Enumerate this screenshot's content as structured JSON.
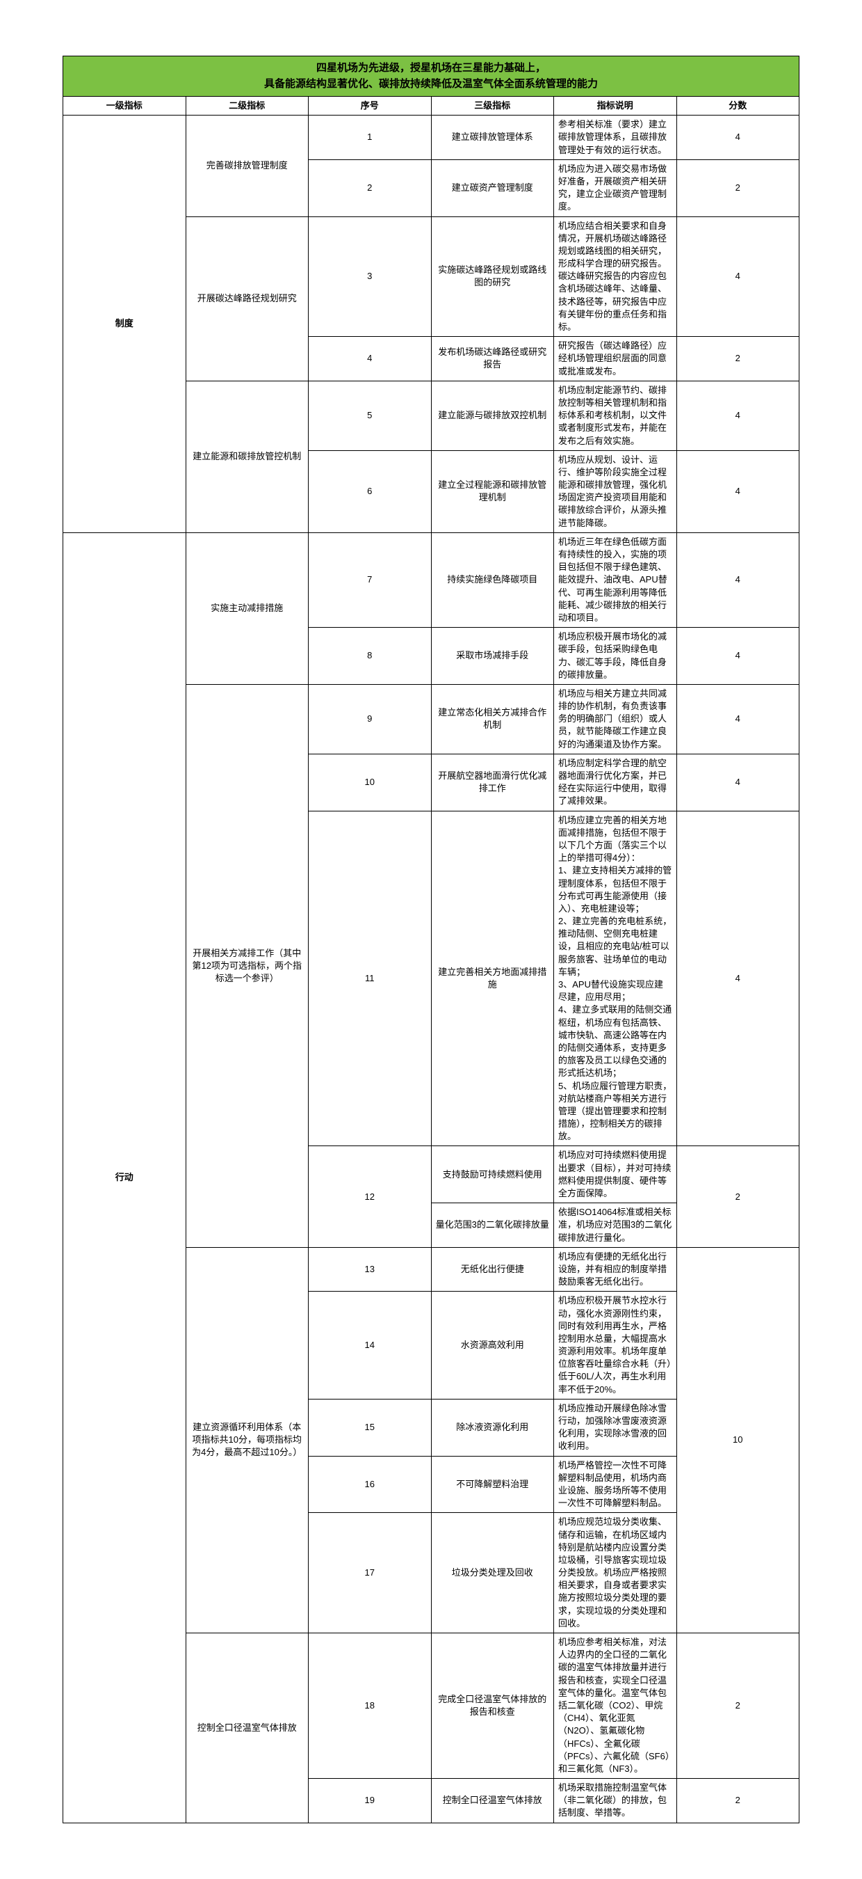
{
  "title_line1": "四星机场为先进级，授星机场在三星能力基础上，",
  "title_line2": "具备能源结构显著优化、碳排放持续降低及温室气体全面系统管理的能力",
  "header": {
    "l1": "一级指标",
    "l2": "二级指标",
    "idx": "序号",
    "l3": "三级指标",
    "desc": "指标说明",
    "score": "分数"
  },
  "groups": [
    {
      "l1": "制度",
      "subgroups": [
        {
          "l2": "完善碳排放管理制度",
          "rows": [
            {
              "idx": "1",
              "l3": "建立碳排放管理体系",
              "desc": "参考相关标准（要求）建立碳排放管理体系，且碳排放管理处于有效的运行状态。",
              "score": "4"
            },
            {
              "idx": "2",
              "l3": "建立碳资产管理制度",
              "desc": "机场应为进入碳交易市场做好准备，开展碳资产相关研究，建立企业碳资产管理制度。",
              "score": "2"
            }
          ]
        },
        {
          "l2": "开展碳达峰路径规划研究",
          "rows": [
            {
              "idx": "3",
              "l3": "实施碳达峰路径规划或路线图的研究",
              "desc": "机场应结合相关要求和自身情况，开展机场碳达峰路径规划或路线图的相关研究，形成科学合理的研究报告。碳达峰研究报告的内容应包含机场碳达峰年、达峰量、技术路径等，研究报告中应有关键年份的重点任务和指标。",
              "score": "4"
            },
            {
              "idx": "4",
              "l3": "发布机场碳达峰路径或研究报告",
              "desc": "研究报告（碳达峰路径）应经机场管理组织层面的同意或批准或发布。",
              "score": "2"
            }
          ]
        },
        {
          "l2": "建立能源和碳排放管控机制",
          "rows": [
            {
              "idx": "5",
              "l3": "建立能源与碳排放双控机制",
              "desc": "机场应制定能源节约、碳排放控制等相关管理机制和指标体系和考核机制，以文件或者制度形式发布，并能在发布之后有效实施。",
              "score": "4"
            },
            {
              "idx": "6",
              "l3": "建立全过程能源和碳排放管理机制",
              "desc": "机场应从规划、设计、运行、维护等阶段实施全过程能源和碳排放管理，强化机场固定资产投资项目用能和碳排放综合评价，从源头推进节能降碳。",
              "score": "4"
            }
          ]
        }
      ]
    },
    {
      "l1": "行动",
      "subgroups": [
        {
          "l2": "实施主动减排措施",
          "rows": [
            {
              "idx": "7",
              "l3": "持续实施绿色降碳项目",
              "desc": "机场近三年在绿色低碳方面有持续性的投入，实施的项目包括但不限于绿色建筑、能效提升、油改电、APU替代、可再生能源利用等降低能耗、减少碳排放的相关行动和项目。",
              "score": "4"
            },
            {
              "idx": "8",
              "l3": "采取市场减排手段",
              "desc": "机场应积极开展市场化的减碳手段，包括采购绿色电力、碳汇等手段，降低自身的碳排放量。",
              "score": "4"
            }
          ]
        },
        {
          "l2": "开展相关方减排工作（其中第12项为可选指标，两个指标选一个参评）",
          "rows": [
            {
              "idx": "9",
              "l3": "建立常态化相关方减排合作机制",
              "desc": "机场应与相关方建立共同减排的协作机制，有负责该事务的明确部门（组织）或人员，就节能降碳工作建立良好的沟通渠道及协作方案。",
              "score": "4"
            },
            {
              "idx": "10",
              "l3": "开展航空器地面滑行优化减排工作",
              "desc": "机场应制定科学合理的航空器地面滑行优化方案，并已经在实际运行中使用，取得了减排效果。",
              "score": "4"
            },
            {
              "idx": "11",
              "l3": "建立完善相关方地面减排措施",
              "desc": "机场应建立完善的相关方地面减排措施，包括但不限于以下几个方面（落实三个以上的举措可得4分）：\n1、建立支持相关方减排的管理制度体系，包括但不限于分布式可再生能源使用（接入）、充电桩建设等；\n2、建立完善的充电桩系统，推动陆侧、空侧充电桩建设，且相应的充电站/桩可以服务旅客、驻场单位的电动车辆；\n3、APU替代设施实现应建尽建，应用尽用；\n4、建立多式联用的陆侧交通枢纽，机场应有包括高铁、城市快轨、高速公路等在内的陆侧交通体系，支持更多的旅客及员工以绿色交通的形式抵达机场；\n5、机场应履行管理方职责，对航站楼商户等相关方进行管理（提出管理要求和控制措施），控制相关方的碳排放。",
              "score": "4"
            },
            {
              "idx": "12",
              "l3_merged": [
                {
                  "l3": "支持鼓励可持续燃料使用",
                  "desc": "机场应对可持续燃料使用提出要求（目标），并对可持续燃料使用提供制度、硬件等全方面保障。"
                },
                {
                  "l3": "量化范围3的二氧化碳排放量",
                  "desc": "依据ISO14064标准或相关标准，机场应对范围3的二氧化碳排放进行量化。"
                }
              ],
              "score": "2"
            }
          ]
        },
        {
          "l2": "建立资源循环利用体系（本项指标共10分，每项指标均为4分，最高不超过10分。）",
          "merged_score": "10",
          "rows": [
            {
              "idx": "13",
              "l3": "无纸化出行便捷",
              "desc": "机场应有便捷的无纸化出行设施，并有相应的制度举措鼓励乘客无纸化出行。"
            },
            {
              "idx": "14",
              "l3": "水资源高效利用",
              "desc": "机场应积极开展节水控水行动，强化水资源刚性约束，同时有效利用再生水，严格控制用水总量，大幅提高水资源利用效率。机场年度单位旅客吞吐量综合水耗（升）低于60L/人次，再生水利用率不低于20%。"
            },
            {
              "idx": "15",
              "l3": "除冰液资源化利用",
              "desc": "机场应推动开展绿色除冰雪行动，加强除冰雪废液资源化利用，实现除冰雪液的回收利用。"
            },
            {
              "idx": "16",
              "l3": "不可降解塑料治理",
              "desc": "机场严格管控一次性不可降解塑料制品使用，机场内商业设施、服务场所等不使用一次性不可降解塑料制品。"
            },
            {
              "idx": "17",
              "l3": "垃圾分类处理及回收",
              "desc": "机场应规范垃圾分类收集、储存和运输，在机场区域内特别是航站楼内应设置分类垃圾桶，引导旅客实现垃圾分类投放。机场应严格按照相关要求，自身或者要求实施方按照垃圾分类处理的要求，实现垃圾的分类处理和回收。"
            }
          ]
        },
        {
          "l2": "控制全口径温室气体排放",
          "rows": [
            {
              "idx": "18",
              "l3": "完成全口径温室气体排放的报告和核查",
              "desc": "机场应参考相关标准，对法人边界内的全口径的二氧化碳的温室气体排放量并进行报告和核查，实现全口径温室气体的量化。温室气体包括二氧化碳（CO2）、甲烷（CH4）、氧化亚氮（N2O）、氢氟碳化物（HFCs）、全氟化碳（PFCs）、六氟化硫（SF6）和三氟化氮（NF3）。",
              "score": "2"
            },
            {
              "idx": "19",
              "l3": "控制全口径温室气体排放",
              "desc": "机场采取措施控制温室气体（非二氧化碳）的排放，包括制度、举措等。",
              "score": "2"
            }
          ]
        }
      ]
    }
  ]
}
